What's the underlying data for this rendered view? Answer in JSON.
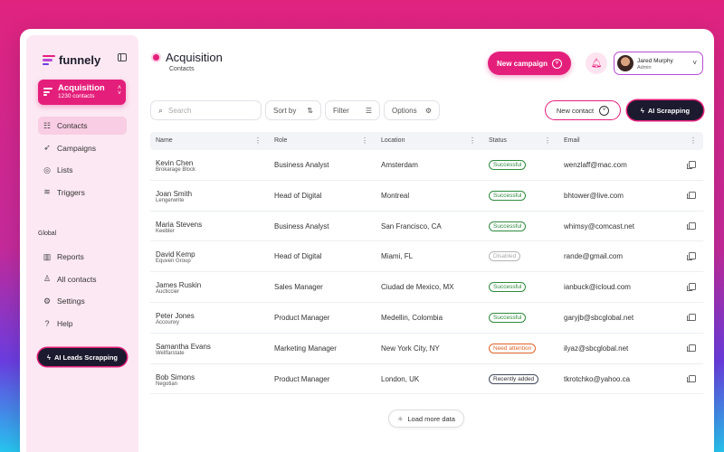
{
  "brand": {
    "name": "funnely",
    "accent": "#e41f7b",
    "dark": "#1c1a2e"
  },
  "workspace": {
    "name": "Acquisition",
    "count": "1230 contacts"
  },
  "sidebar": {
    "items": [
      {
        "label": "Contacts",
        "icon": "contacts-icon",
        "glyph": "☷",
        "active": true
      },
      {
        "label": "Campaigns",
        "icon": "rocket-icon",
        "glyph": "➶",
        "active": false
      },
      {
        "label": "Lists",
        "icon": "target-icon",
        "glyph": "◎",
        "active": false
      },
      {
        "label": "Triggers",
        "icon": "database-icon",
        "glyph": "≋",
        "active": false
      }
    ],
    "section_label": "Global",
    "global_items": [
      {
        "label": "Reports",
        "icon": "chart-icon",
        "glyph": "▥"
      },
      {
        "label": "All contacts",
        "icon": "users-icon",
        "glyph": "♙"
      },
      {
        "label": "Settings",
        "icon": "gear-icon",
        "glyph": "⚙"
      },
      {
        "label": "Help",
        "icon": "help-icon",
        "glyph": "?"
      }
    ],
    "ai_button": "AI Leads Scrapping"
  },
  "header": {
    "title": "Acquisition",
    "subtitle": "Contacts",
    "new_campaign": "New campaign",
    "user_name": "Jared Murphy",
    "user_role": "Admin"
  },
  "toolbar": {
    "search_placeholder": "Search",
    "sort": "Sort by",
    "filter": "Filter",
    "options": "Options",
    "new_contact": "New contact",
    "ai_scrapping": "AI Scrapping"
  },
  "table": {
    "columns": [
      "Name",
      "Role",
      "Location",
      "Status",
      "Email"
    ],
    "rows": [
      {
        "name": "Kevin Chen",
        "company": "Brokarage Block",
        "role": "Business Analyst",
        "location": "Amsterdam",
        "status": "Successful",
        "status_type": "success",
        "email": "wenzlaff@mac.com"
      },
      {
        "name": "Joan Smith",
        "company": "Lengerwrite",
        "role": "Head of Digital",
        "location": "Montreal",
        "status": "Successful",
        "status_type": "success",
        "email": "bhtower@live.com"
      },
      {
        "name": "Maria Stevens",
        "company": "Keebler",
        "role": "Business Analyst",
        "location": "San Francisco, CA",
        "status": "Successful",
        "status_type": "success",
        "email": "whimsy@comcast.net"
      },
      {
        "name": "David Kemp",
        "company": "Equven Group",
        "role": "Head of Digital",
        "location": "Miami, FL",
        "status": "Disabled",
        "status_type": "disabled",
        "email": "rande@gmail.com"
      },
      {
        "name": "James Ruskin",
        "company": "Aucticcier",
        "role": "Sales Manager",
        "location": "Ciudad de Mexico, MX",
        "status": "Successful",
        "status_type": "success",
        "email": "ianbuck@icloud.com"
      },
      {
        "name": "Peter Jones",
        "company": "Accounxy",
        "role": "Product Manager",
        "location": "Medellin, Colombia",
        "status": "Successful",
        "status_type": "success",
        "email": "garyjb@sbcglobal.net"
      },
      {
        "name": "Samantha Evans",
        "company": "Wellfarstate",
        "role": "Marketing Manager",
        "location": "New York City, NY",
        "status": "Need attention",
        "status_type": "attention",
        "email": "ilyaz@sbcglobal.net"
      },
      {
        "name": "Bob Simons",
        "company": "Negotian",
        "role": "Product Manager",
        "location": "London, UK",
        "status": "Recently added",
        "status_type": "recent",
        "email": "tkrotchko@yahoo.ca"
      }
    ]
  },
  "load_more": "Load more data",
  "status_colors": {
    "success": "#2e8b3e",
    "disabled": "#b5b5b5",
    "attention": "#e0632a",
    "recent": "#444a5e"
  }
}
